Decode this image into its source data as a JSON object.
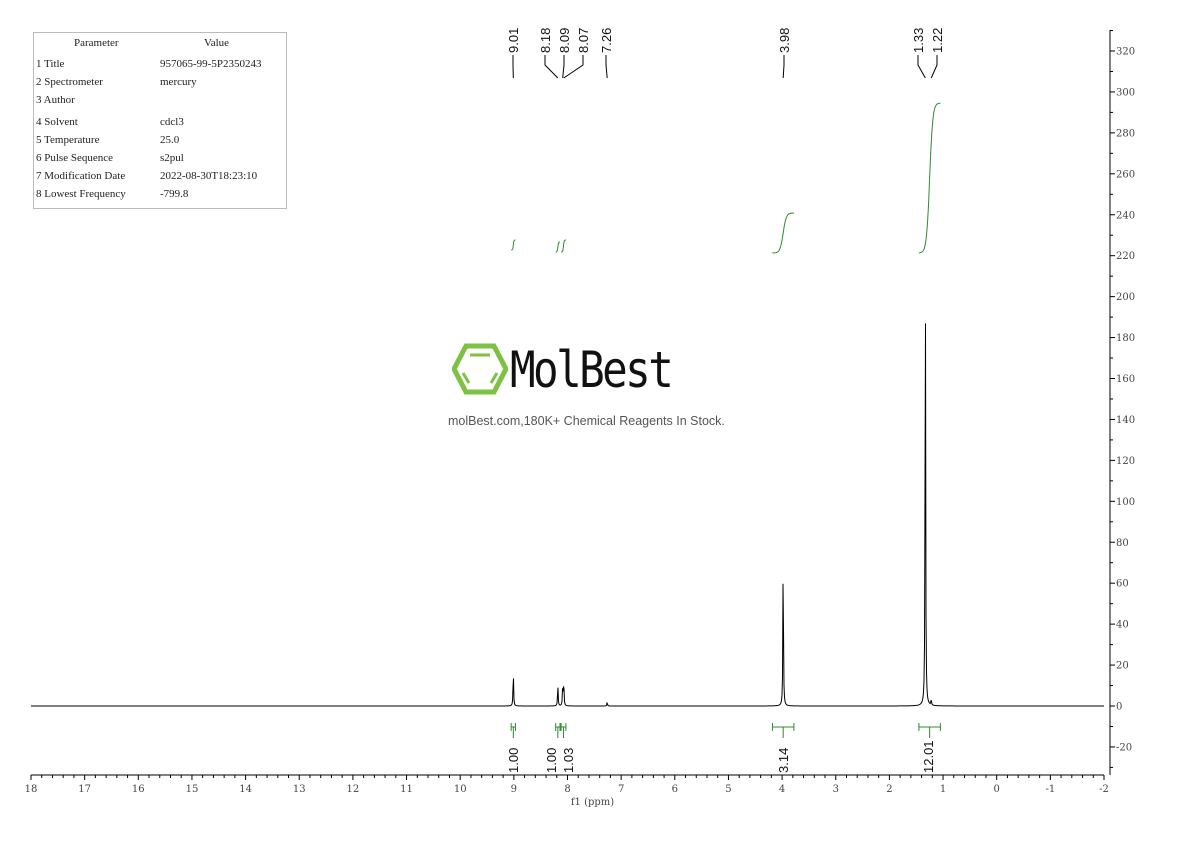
{
  "parameters": {
    "header": {
      "param": "Parameter",
      "value": "Value"
    },
    "rows": [
      {
        "key": "1 Title",
        "value": "957065-99-5P2350243"
      },
      {
        "key": "2 Spectrometer",
        "value": "mercury"
      },
      {
        "key": "3 Author",
        "value": ""
      },
      {
        "key": "4 Solvent",
        "value": "cdcl3"
      },
      {
        "key": "5 Temperature",
        "value": "25.0"
      },
      {
        "key": "6 Pulse Sequence",
        "value": "s2pul"
      },
      {
        "key": "7 Modification Date",
        "value": "2022-08-30T18:23:10"
      },
      {
        "key": "8 Lowest Frequency",
        "value": "-799.8"
      }
    ]
  },
  "watermark": {
    "brand": "MolBest",
    "tagline": "molBest.com,180K+ Chemical Reagents In Stock.",
    "color": "#7dc242"
  },
  "chart_data": {
    "type": "line",
    "xlabel": "f1 (ppm)",
    "xlim": [
      18,
      -2
    ],
    "ylim": [
      -30,
      330
    ],
    "x_ticks": [
      "18",
      "17",
      "16",
      "15",
      "14",
      "13",
      "12",
      "11",
      "10",
      "9",
      "8",
      "7",
      "6",
      "5",
      "4",
      "3",
      "2",
      "1",
      "0",
      "-1",
      "-2"
    ],
    "y_ticks": [
      "320",
      "300",
      "280",
      "260",
      "240",
      "220",
      "200",
      "180",
      "160",
      "140",
      "120",
      "100",
      "80",
      "60",
      "40",
      "20",
      "0",
      "-20"
    ],
    "peaks": [
      {
        "ppm": 9.01,
        "height": 18,
        "label": "9.01"
      },
      {
        "ppm": 8.18,
        "height": 11,
        "label": "8.18"
      },
      {
        "ppm": 8.09,
        "height": 10,
        "label": "8.09"
      },
      {
        "ppm": 8.07,
        "height": 13,
        "label": "8.07"
      },
      {
        "ppm": 7.26,
        "height": 2,
        "label": "7.26"
      },
      {
        "ppm": 3.98,
        "height": 77,
        "label": "3.98"
      },
      {
        "ppm": 1.33,
        "height": 230,
        "label": "1.33"
      },
      {
        "ppm": 1.22,
        "height": 3,
        "label": "1.22"
      }
    ],
    "integrals": [
      {
        "from": 9.05,
        "to": 8.97,
        "value": "1.00"
      },
      {
        "from": 8.22,
        "to": 8.14,
        "value": "1.00"
      },
      {
        "from": 8.12,
        "to": 8.03,
        "value": "1.03"
      },
      {
        "from": 4.18,
        "to": 3.78,
        "value": "3.14"
      },
      {
        "from": 1.45,
        "to": 1.05,
        "value": "12.01"
      }
    ],
    "line_color": "#000000",
    "integral_color": "#2e8b2e"
  }
}
